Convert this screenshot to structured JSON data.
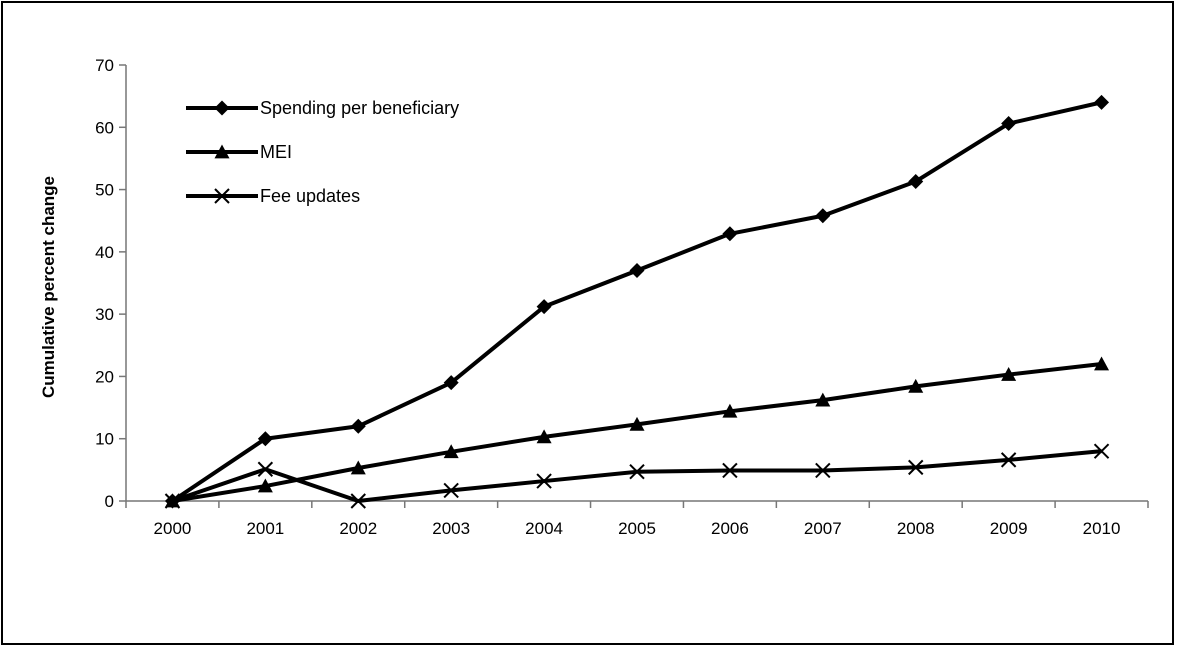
{
  "chart_data": {
    "type": "line",
    "ylabel": "Cumulative percent change",
    "xlabel": "",
    "categories": [
      "2000",
      "2001",
      "2002",
      "2003",
      "2004",
      "2005",
      "2006",
      "2007",
      "2008",
      "2009",
      "2010"
    ],
    "ylim": [
      0,
      70
    ],
    "yticks": [
      0,
      10,
      20,
      30,
      40,
      50,
      60,
      70
    ],
    "grid": false,
    "legend_position": "top-left",
    "line_color": "#000000",
    "series": [
      {
        "name": "Spending per beneficiary",
        "marker": "diamond",
        "values": [
          0,
          10,
          12,
          19,
          31.2,
          37,
          42.9,
          45.8,
          51.3,
          60.6,
          64
        ]
      },
      {
        "name": "MEI",
        "marker": "triangle",
        "values": [
          0,
          2.4,
          5.3,
          7.9,
          10.3,
          12.3,
          14.4,
          16.2,
          18.4,
          20.3,
          22
        ]
      },
      {
        "name": "Fee updates",
        "marker": "x",
        "values": [
          0,
          5.1,
          0,
          1.7,
          3.2,
          4.7,
          4.9,
          4.9,
          5.4,
          6.6,
          8
        ]
      }
    ]
  }
}
